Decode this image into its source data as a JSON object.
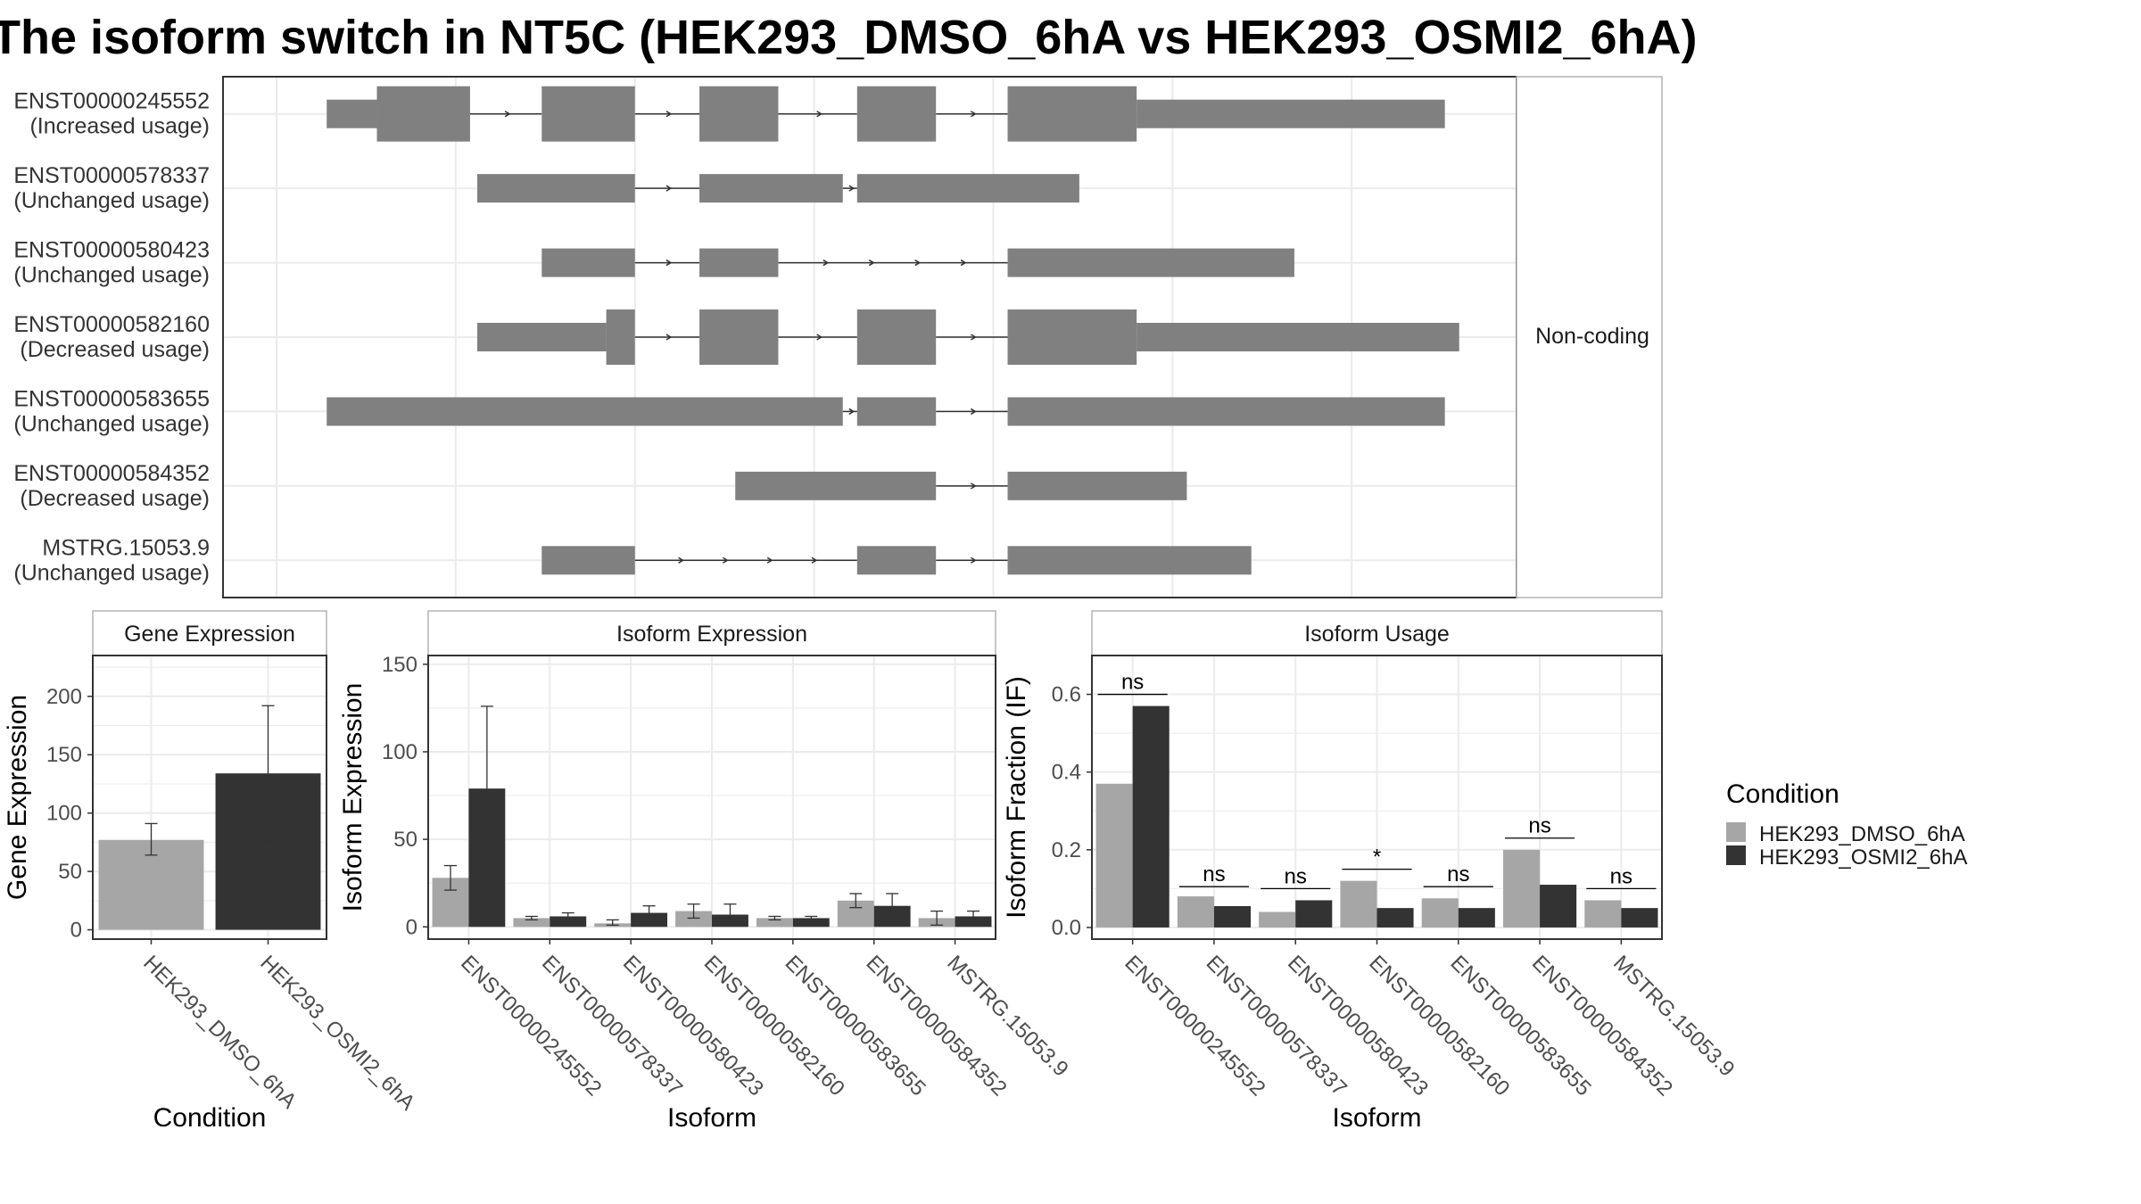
{
  "title": "The isoform switch in NT5C (HEK293_DMSO_6hA vs HEK293_OSMI2_6hA)",
  "colors": {
    "dmso": "#a6a6a6",
    "osmi2": "#333333",
    "exon": "#808080",
    "grid": "#ebebeb",
    "panel_border": "#333333",
    "strip_border": "#b3b3b3"
  },
  "structure": {
    "strip_label": "Non-coding",
    "transcripts": [
      {
        "id": "ENST00000245552",
        "status": "(Increased usage)",
        "exons": [
          [
            0.7,
            1.4,
            "thin"
          ],
          [
            1.4,
            2.7,
            "thick"
          ],
          [
            3.7,
            5.0,
            "thick"
          ],
          [
            5.9,
            7.0,
            "thick"
          ],
          [
            8.1,
            9.2,
            "thick"
          ],
          [
            10.2,
            12.0,
            "thick"
          ],
          [
            12.0,
            16.3,
            "thin"
          ]
        ]
      },
      {
        "id": "ENST00000578337",
        "status": "(Unchanged usage)",
        "exons": [
          [
            2.8,
            5.0,
            "thin"
          ],
          [
            5.9,
            7.9,
            "thin"
          ],
          [
            8.1,
            11.2,
            "thin"
          ]
        ]
      },
      {
        "id": "ENST00000580423",
        "status": "(Unchanged usage)",
        "exons": [
          [
            3.7,
            5.0,
            "thin"
          ],
          [
            5.9,
            7.0,
            "thin"
          ],
          [
            10.2,
            14.2,
            "thin"
          ]
        ]
      },
      {
        "id": "ENST00000582160",
        "status": "(Decreased usage)",
        "exons": [
          [
            2.8,
            4.6,
            "thin"
          ],
          [
            4.6,
            5.0,
            "thick"
          ],
          [
            5.9,
            7.0,
            "thick"
          ],
          [
            8.1,
            9.2,
            "thick"
          ],
          [
            10.2,
            12.0,
            "thick"
          ],
          [
            12.0,
            16.5,
            "thin"
          ]
        ]
      },
      {
        "id": "ENST00000583655",
        "status": "(Unchanged usage)",
        "exons": [
          [
            0.7,
            7.9,
            "thin"
          ],
          [
            8.1,
            9.2,
            "thin"
          ],
          [
            10.2,
            16.3,
            "thin"
          ]
        ]
      },
      {
        "id": "ENST00000584352",
        "status": "(Decreased usage)",
        "exons": [
          [
            6.4,
            9.2,
            "thin"
          ],
          [
            10.2,
            12.7,
            "thin"
          ]
        ]
      },
      {
        "id": "MSTRG.15053.9",
        "status": "(Unchanged usage)",
        "exons": [
          [
            3.7,
            5.0,
            "thin"
          ],
          [
            8.1,
            9.2,
            "thin"
          ],
          [
            10.2,
            13.6,
            "thin"
          ]
        ]
      }
    ]
  },
  "chart_data": [
    {
      "type": "bar",
      "panel": "Gene Expression",
      "title": "Gene Expression",
      "xlabel": "Condition",
      "ylabel": "Gene Expression",
      "categories": [
        "HEK293_DMSO_6hA",
        "HEK293_OSMI2_6hA"
      ],
      "values": [
        77,
        134
      ],
      "error_low": [
        64,
        76
      ],
      "error_high": [
        91,
        192
      ],
      "ylim": [
        -8,
        235
      ],
      "yticks": [
        0,
        50,
        100,
        150,
        200
      ]
    },
    {
      "type": "bar",
      "panel": "Isoform Expression",
      "title": "Isoform Expression",
      "xlabel": "Isoform",
      "ylabel": "Isoform Expression",
      "categories": [
        "ENST00000245552",
        "ENST00000578337",
        "ENST00000580423",
        "ENST00000582160",
        "ENST00000583655",
        "ENST00000584352",
        "MSTRG.15053.9"
      ],
      "series": [
        {
          "name": "HEK293_DMSO_6hA",
          "values": [
            28,
            5,
            2,
            9,
            5,
            15,
            5
          ],
          "error_low": [
            21,
            4,
            1,
            5,
            4,
            11,
            1
          ],
          "error_high": [
            35,
            6,
            4,
            13,
            6,
            19,
            9
          ]
        },
        {
          "name": "HEK293_OSMI2_6hA",
          "values": [
            79,
            6,
            8,
            7,
            5,
            12,
            6
          ],
          "error_low": [
            33,
            4,
            5,
            1,
            4,
            5,
            3
          ],
          "error_high": [
            126,
            8,
            12,
            13,
            6,
            19,
            9
          ]
        }
      ],
      "ylim": [
        -7,
        155
      ],
      "yticks": [
        0,
        50,
        100,
        150
      ]
    },
    {
      "type": "bar",
      "panel": "Isoform Usage",
      "title": "Isoform Usage",
      "xlabel": "Isoform",
      "ylabel": "Isoform Fraction (IF)",
      "categories": [
        "ENST00000245552",
        "ENST00000578337",
        "ENST00000580423",
        "ENST00000582160",
        "ENST00000583655",
        "ENST00000584352",
        "MSTRG.15053.9"
      ],
      "series": [
        {
          "name": "HEK293_DMSO_6hA",
          "values": [
            0.37,
            0.08,
            0.04,
            0.12,
            0.075,
            0.2,
            0.07
          ]
        },
        {
          "name": "HEK293_OSMI2_6hA",
          "values": [
            0.57,
            0.055,
            0.07,
            0.05,
            0.05,
            0.11,
            0.05
          ]
        }
      ],
      "significance": [
        "ns",
        "ns",
        "ns",
        "*",
        "ns",
        "ns",
        "ns"
      ],
      "sig_y": [
        0.6,
        0.105,
        0.1,
        0.15,
        0.105,
        0.23,
        0.1
      ],
      "ylim": [
        -0.03,
        0.7
      ],
      "yticks": [
        0.0,
        0.2,
        0.4,
        0.6
      ],
      "ytick_labels": [
        "0.0",
        "0.2",
        "0.4",
        "0.6"
      ]
    }
  ],
  "legend": {
    "title": "Condition",
    "placement": "right",
    "items": [
      {
        "label": "HEK293_DMSO_6hA",
        "color": "#a6a6a6"
      },
      {
        "label": "HEK293_OSMI2_6hA",
        "color": "#333333"
      }
    ]
  }
}
